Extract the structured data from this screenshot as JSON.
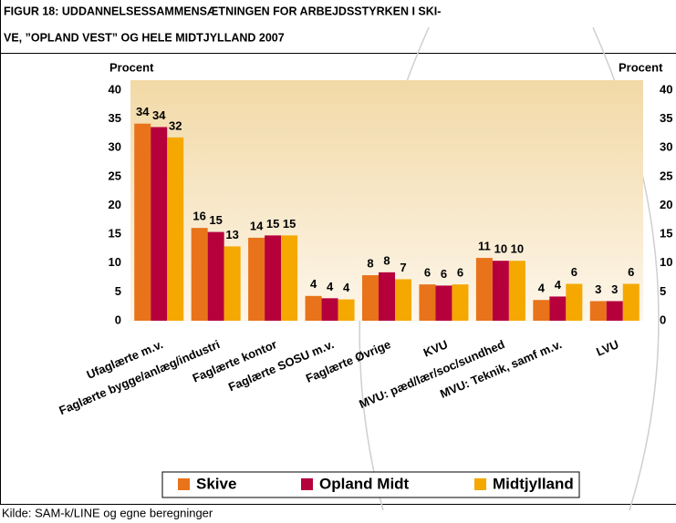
{
  "chart_data": {
    "type": "bar",
    "title": [
      "FIGUR 18: UDDANNELSESSAMMENSÆTNINGEN FOR ARBEJDSSTYRKEN I SKI-",
      "VE, ”OPLAND VEST” OG HELE MIDTJYLLAND 2007"
    ],
    "y_label": "Procent",
    "y2_label": "Procent",
    "categories": [
      "Ufaglærte m.v.",
      "Faglærte bygge/anlæg/industri",
      "Faglærte kontor",
      "Faglærte SOSU m.v.",
      "Faglærte Øvrige",
      "KVU",
      "MVU: pæd/lær/soc/sundhed",
      "MVU: Teknik, samf m.v.",
      "LVU"
    ],
    "series": [
      {
        "name": "Skive",
        "color": "#e8731a",
        "values": [
          34.2,
          16.1,
          14.4,
          4.3,
          7.9,
          6.3,
          10.9,
          3.6,
          3.4
        ],
        "value_labels": [
          "34",
          "16",
          "14",
          "4",
          "8",
          "6",
          "11",
          "4",
          "3"
        ]
      },
      {
        "name": "Opland Midt",
        "color": "#b5003c",
        "values": [
          33.6,
          15.4,
          14.8,
          3.9,
          8.4,
          6.1,
          10.4,
          4.2,
          3.4
        ],
        "value_labels": [
          "34",
          "15",
          "15",
          "4",
          "8",
          "6",
          "10",
          "4",
          "3"
        ]
      },
      {
        "name": "Midtjylland",
        "color": "#f5a800",
        "values": [
          31.8,
          12.9,
          14.8,
          3.7,
          7.2,
          6.3,
          10.4,
          6.4,
          6.4
        ],
        "value_labels": [
          "32",
          "13",
          "15",
          "4",
          "7",
          "6",
          "10",
          "6",
          "6"
        ]
      }
    ],
    "ylim": [
      0,
      40
    ],
    "yticks": [
      0,
      5,
      10,
      15,
      20,
      25,
      30,
      35,
      40
    ],
    "y2lim": [
      0,
      40
    ],
    "y2ticks": [
      0,
      5,
      10,
      15,
      20,
      25,
      30,
      35,
      40
    ],
    "legend": "bottom",
    "source": "Kilde: SAM-k/LINE og egne beregninger"
  }
}
